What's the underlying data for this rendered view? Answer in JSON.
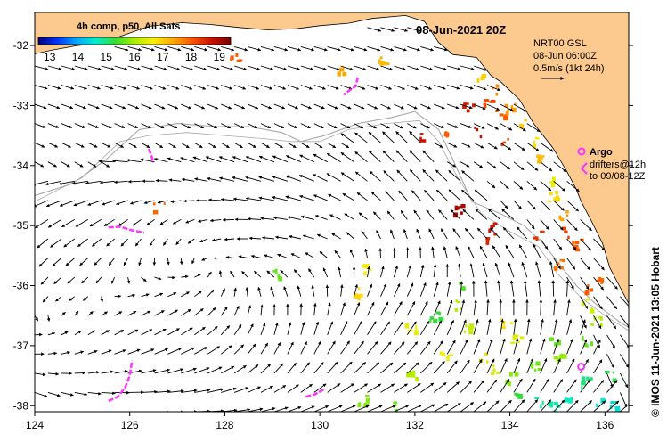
{
  "title": "08-Jun-2021 20Z",
  "colorbar": {
    "title": "4h comp, p50, All Sats",
    "ticks": [
      "13",
      "14",
      "15",
      "16",
      "17",
      "18",
      "19"
    ],
    "range": [
      12.6,
      19.4
    ],
    "colors": [
      "#00007f",
      "#0033ff",
      "#00aaff",
      "#00eecc",
      "#33dd33",
      "#aaee00",
      "#ffee00",
      "#ffaa00",
      "#ff5500",
      "#cc1100",
      "#7f0000"
    ]
  },
  "currents_info": {
    "line1": "NRT00 GSL",
    "line2": "08-Jun 06:00Z",
    "line3": "0.5m/s (1kt 24h)"
  },
  "argo_legend": {
    "label": "Argo",
    "line2": "drifters@12h",
    "line3": "to 09/08-12Z"
  },
  "credit": "© IMOS 11-Jun-2021 13:05 Hobart",
  "axes": {
    "lon_range": [
      124,
      136.5
    ],
    "lat_range": [
      -38.1,
      -31.45
    ],
    "x_ticks": [
      "124",
      "126",
      "128",
      "130",
      "132",
      "134",
      "136"
    ],
    "y_ticks": [
      "-32",
      "-33",
      "-34",
      "-35",
      "-36",
      "-37",
      "-38"
    ]
  },
  "colors": {
    "land": "#fcc98f",
    "ocean": "#ffffff",
    "bathymetry": "#a8a8a8",
    "argo": "#ff33ff",
    "arrow": "#000000"
  },
  "coastline": [
    [
      124,
      -32.14
    ],
    [
      124.35,
      -32.08
    ],
    [
      124.9,
      -32.0
    ],
    [
      125.3,
      -31.97
    ],
    [
      125.8,
      -31.85
    ],
    [
      126.4,
      -31.68
    ],
    [
      127.1,
      -31.62
    ],
    [
      127.7,
      -31.65
    ],
    [
      128.3,
      -31.7
    ],
    [
      128.9,
      -31.74
    ],
    [
      129.5,
      -31.72
    ],
    [
      130.0,
      -31.67
    ],
    [
      130.6,
      -31.63
    ],
    [
      131.1,
      -31.55
    ],
    [
      131.8,
      -31.5
    ],
    [
      132.2,
      -31.6
    ],
    [
      132.5,
      -31.95
    ],
    [
      132.8,
      -32.15
    ],
    [
      133.3,
      -32.2
    ],
    [
      133.6,
      -32.5
    ],
    [
      133.8,
      -32.6
    ],
    [
      134.2,
      -32.9
    ],
    [
      134.5,
      -33.3
    ],
    [
      134.9,
      -33.7
    ],
    [
      135.2,
      -34.1
    ],
    [
      135.4,
      -34.4
    ],
    [
      135.5,
      -34.6
    ],
    [
      135.7,
      -34.9
    ],
    [
      135.95,
      -35.3
    ],
    [
      136.1,
      -35.7
    ],
    [
      136.3,
      -36.0
    ],
    [
      136.5,
      -36.3
    ]
  ],
  "argo_drifters": [
    {
      "path": [
        [
          125.55,
          -35.03
        ],
        [
          125.8,
          -35.02
        ],
        [
          126.05,
          -35.08
        ],
        [
          126.3,
          -35.12
        ]
      ]
    },
    {
      "path": [
        [
          125.55,
          -37.92
        ],
        [
          125.75,
          -37.85
        ],
        [
          125.9,
          -37.7
        ],
        [
          126.0,
          -37.5
        ],
        [
          126.05,
          -37.25
        ]
      ]
    },
    {
      "path": [
        [
          126.4,
          -33.72
        ],
        [
          126.45,
          -33.82
        ],
        [
          126.5,
          -33.95
        ]
      ]
    },
    {
      "path": [
        [
          130.8,
          -32.53
        ],
        [
          130.75,
          -32.68
        ],
        [
          130.6,
          -32.76
        ],
        [
          130.5,
          -32.82
        ]
      ]
    },
    {
      "path": [
        [
          129.7,
          -37.85
        ],
        [
          129.9,
          -37.81
        ],
        [
          130.1,
          -37.72
        ]
      ]
    },
    {
      "path": [
        [
          135.5,
          -37.35
        ]
      ],
      "dot": true
    }
  ],
  "sst_patches": [
    [
      133.4,
      -32.55,
      17.0
    ],
    [
      133.6,
      -32.7,
      17.6
    ],
    [
      133.5,
      -32.95,
      18.2
    ],
    [
      133.1,
      -33.0,
      18.6
    ],
    [
      133.8,
      -33.1,
      18.0
    ],
    [
      134.0,
      -33.0,
      17.5
    ],
    [
      134.3,
      -33.3,
      17.0
    ],
    [
      134.5,
      -33.6,
      16.8
    ],
    [
      134.6,
      -33.9,
      17.2
    ],
    [
      134.8,
      -34.2,
      16.5
    ],
    [
      134.9,
      -34.5,
      16.9
    ],
    [
      135.1,
      -34.8,
      17.4
    ],
    [
      135.2,
      -35.1,
      18.3
    ],
    [
      135.4,
      -35.3,
      18.0
    ],
    [
      135.0,
      -35.6,
      17.8
    ],
    [
      135.6,
      -36.0,
      18.0
    ],
    [
      135.9,
      -35.9,
      17.9
    ],
    [
      135.6,
      -36.3,
      16.3
    ],
    [
      135.8,
      -36.6,
      16.0
    ],
    [
      135.6,
      -36.9,
      15.6
    ],
    [
      133.6,
      -35.0,
      18.7
    ],
    [
      133.6,
      -35.2,
      18.5
    ],
    [
      132.9,
      -34.7,
      19.0
    ],
    [
      134.6,
      -35.1,
      18.4
    ],
    [
      126.6,
      -34.7,
      17.9
    ],
    [
      128.2,
      -32.2,
      18.0
    ],
    [
      131.3,
      -32.2,
      17.2
    ],
    [
      130.4,
      -32.4,
      17.4
    ],
    [
      133.3,
      -33.4,
      18.8
    ],
    [
      133.9,
      -33.6,
      18.3
    ],
    [
      132.1,
      -33.5,
      18.7
    ],
    [
      132.6,
      -33.4,
      18.0
    ],
    [
      131.9,
      -36.7,
      16.5
    ],
    [
      131.5,
      -38.0,
      15.7
    ],
    [
      132.9,
      -36.0,
      15.5
    ],
    [
      132.9,
      -36.3,
      16.0
    ],
    [
      132.4,
      -36.5,
      15.3
    ],
    [
      133.1,
      -36.7,
      16.2
    ],
    [
      132.6,
      -37.1,
      16.6
    ],
    [
      133.4,
      -37.2,
      16.9
    ],
    [
      133.7,
      -37.4,
      16.3
    ],
    [
      134.0,
      -37.5,
      15.8
    ],
    [
      134.2,
      -37.8,
      15.3
    ],
    [
      134.6,
      -37.9,
      14.9
    ],
    [
      134.9,
      -38.0,
      14.8
    ],
    [
      135.2,
      -37.8,
      14.7
    ],
    [
      135.6,
      -37.6,
      15.0
    ],
    [
      135.8,
      -37.9,
      14.6
    ],
    [
      136.1,
      -37.5,
      15.2
    ],
    [
      136.2,
      -38.0,
      14.5
    ],
    [
      134.5,
      -37.3,
      15.7
    ],
    [
      135.0,
      -37.2,
      15.9
    ],
    [
      131.0,
      -35.7,
      16.6
    ],
    [
      129.1,
      -35.8,
      15.6
    ],
    [
      130.8,
      -36.1,
      16.9
    ],
    [
      131.9,
      -37.5,
      16.1
    ],
    [
      130.9,
      -37.9,
      15.8
    ],
    [
      134.9,
      -36.9,
      15.6
    ],
    [
      134.1,
      -36.9,
      16.4
    ],
    [
      133.9,
      -36.6,
      16.8
    ]
  ]
}
